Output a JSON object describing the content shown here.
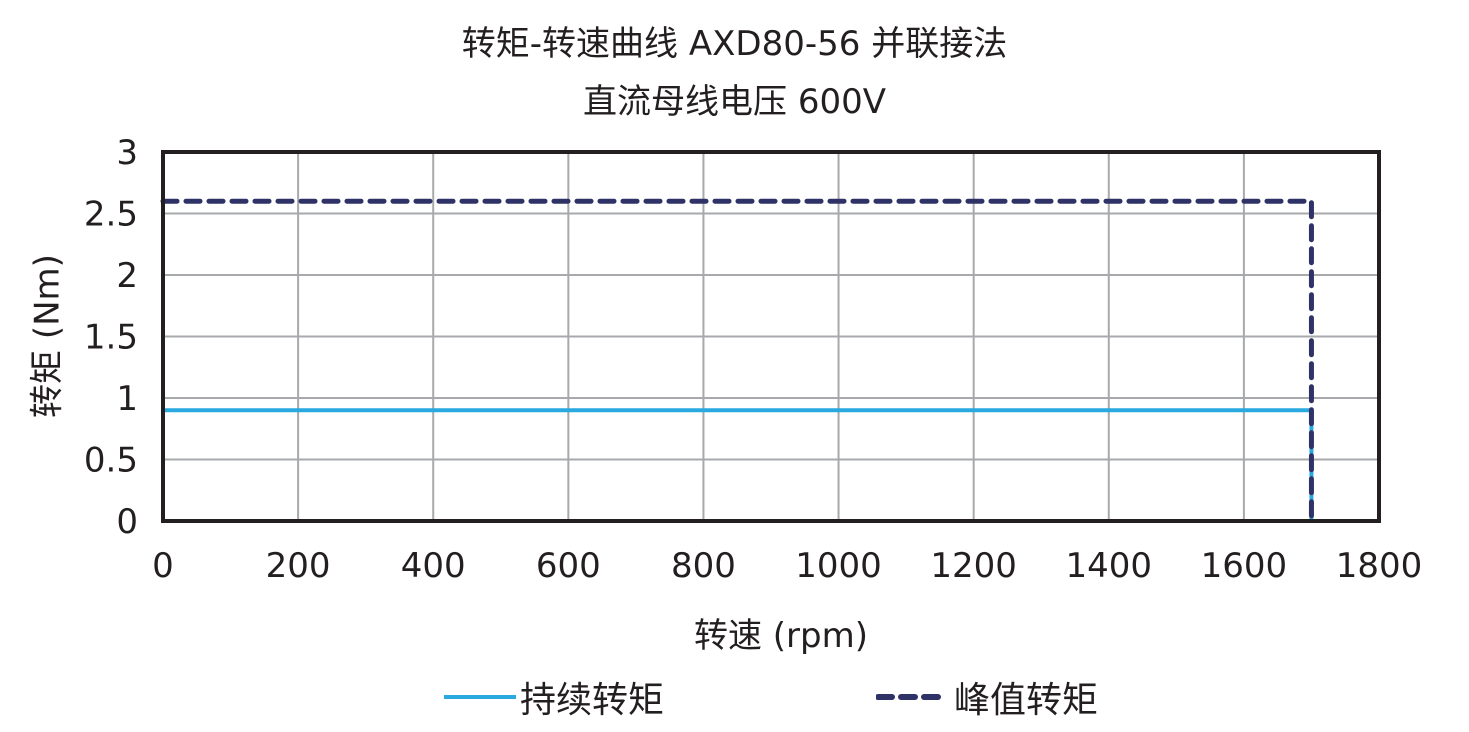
{
  "chart_data": {
    "type": "line",
    "title": "转矩-转速曲线 AXD80-56 并联接法",
    "subtitle": "直流母线电压 600V",
    "xlabel": "转速 (rpm)",
    "ylabel": "转矩 (Nm)",
    "xlim": [
      0,
      1800
    ],
    "ylim": [
      0,
      3
    ],
    "x_ticks": [
      "0",
      "200",
      "400",
      "600",
      "800",
      "1000",
      "1200",
      "1400",
      "1600",
      "1800"
    ],
    "y_ticks": [
      "0",
      "0.5",
      "1",
      "1.5",
      "2",
      "2.5",
      "3"
    ],
    "grid": true,
    "legend_position": "bottom",
    "series": [
      {
        "name": "持续转矩",
        "style": "solid",
        "color": "#29a9e0",
        "x": [
          0,
          1700,
          1700
        ],
        "y": [
          0.9,
          0.9,
          0
        ]
      },
      {
        "name": "峰值转矩",
        "style": "dashed",
        "color": "#2e3266",
        "x": [
          0,
          1700,
          1700
        ],
        "y": [
          2.6,
          2.6,
          0
        ]
      }
    ]
  },
  "labels": {
    "title_line1": "转矩-转速曲线 AXD80-56 并联接法",
    "title_line2": "直流母线电压 600V",
    "xlabel": "转速 (rpm)",
    "ylabel": "转矩 (Nm)",
    "legend_continuous": "持续转矩",
    "legend_peak": "峰值转矩"
  }
}
